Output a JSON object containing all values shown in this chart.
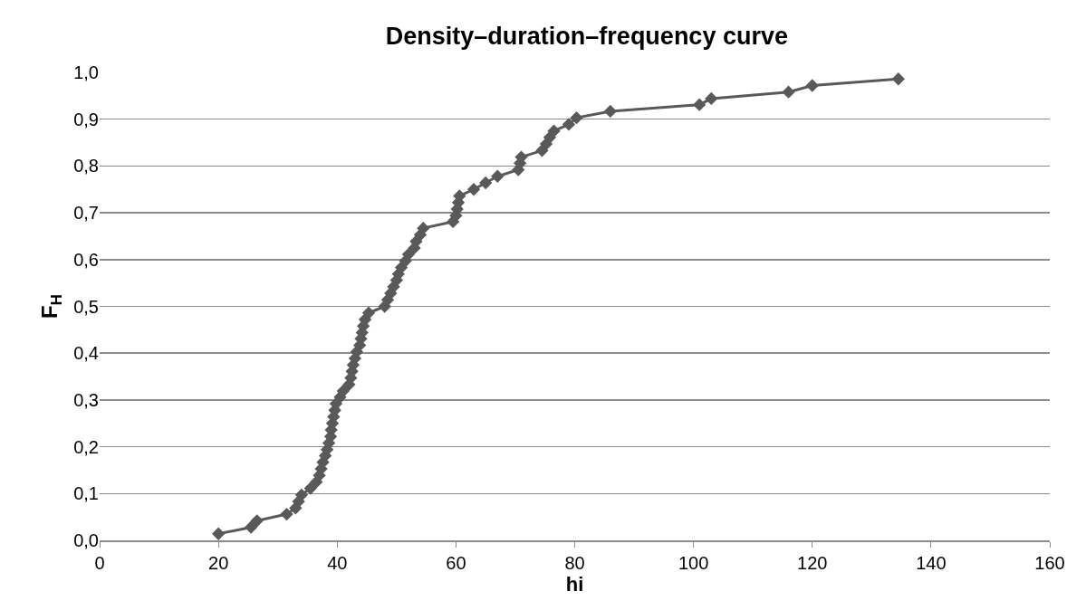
{
  "chart_data": {
    "type": "line",
    "title": "Density–duration–frequency curve",
    "xlabel": "hi",
    "ylabel": "F$_{H}$",
    "x": [
      20,
      25.5,
      26.5,
      31.5,
      33,
      33.5,
      34,
      35.5,
      36.5,
      37,
      37.3,
      37.6,
      38,
      38.3,
      38.6,
      38.9,
      39,
      39.2,
      39.4,
      39.6,
      39.8,
      40.5,
      41,
      42,
      42.3,
      42.5,
      42.7,
      43,
      43.3,
      43.8,
      44,
      44.2,
      44.4,
      44.7,
      45.3,
      48,
      48.5,
      49,
      49.5,
      50,
      50.3,
      50.8,
      51.5,
      52,
      53,
      53.3,
      54,
      54.5,
      59.5,
      60,
      60.2,
      60.4,
      60.6,
      63,
      65,
      67,
      70.5,
      70.8,
      71,
      74.5,
      75.2,
      75.8,
      76.5,
      79,
      80.3,
      86,
      101,
      103,
      116,
      120,
      134.5
    ],
    "series": [
      {
        "color": "#595959",
        "values": [
          0.014,
          0.028,
          0.042,
          0.056,
          0.069,
          0.083,
          0.097,
          0.111,
          0.125,
          0.139,
          0.153,
          0.167,
          0.181,
          0.194,
          0.208,
          0.222,
          0.236,
          0.25,
          0.264,
          0.278,
          0.292,
          0.306,
          0.319,
          0.333,
          0.347,
          0.361,
          0.375,
          0.389,
          0.403,
          0.417,
          0.431,
          0.444,
          0.458,
          0.472,
          0.486,
          0.5,
          0.514,
          0.528,
          0.542,
          0.556,
          0.569,
          0.583,
          0.597,
          0.611,
          0.625,
          0.639,
          0.653,
          0.667,
          0.681,
          0.694,
          0.708,
          0.722,
          0.736,
          0.75,
          0.764,
          0.778,
          0.792,
          0.806,
          0.819,
          0.833,
          0.847,
          0.861,
          0.875,
          0.889,
          0.903,
          0.917,
          0.931,
          0.944,
          0.958,
          0.972,
          0.986
        ]
      }
    ],
    "xlim": [
      0,
      160
    ],
    "xticks": [
      0,
      20,
      40,
      60,
      80,
      100,
      120,
      140,
      160
    ],
    "ylim": [
      0,
      1
    ],
    "yticks": [
      {
        "value": 0,
        "label": "0,0"
      },
      {
        "value": 0.1,
        "label": "0,1"
      },
      {
        "value": 0.2,
        "label": "0,2"
      },
      {
        "value": 0.3,
        "label": "0,3"
      },
      {
        "value": 0.4,
        "label": "0,4"
      },
      {
        "value": 0.5,
        "label": "0,5"
      },
      {
        "value": 0.6,
        "label": "0,6"
      },
      {
        "value": 0.7,
        "label": "0,7"
      },
      {
        "value": 0.8,
        "label": "0,8"
      },
      {
        "value": 0.9,
        "label": "0,9"
      },
      {
        "value": 1,
        "label": "1,0"
      }
    ],
    "grid": "y",
    "marker": "diamond",
    "line_style": "solid"
  }
}
